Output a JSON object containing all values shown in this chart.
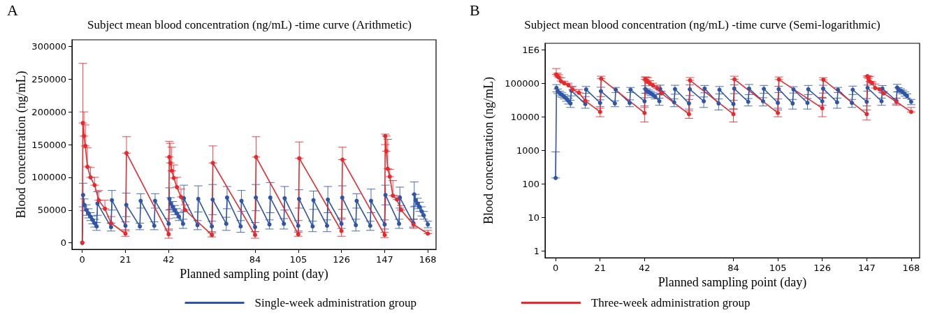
{
  "chart_data": [
    {
      "type": "line",
      "title": "Subject mean blood concentration (ng/mL) -time curve (Arithmetic)",
      "xlabel": "Planned sampling point (day)",
      "ylabel": "Blood concentration (ng/mL)",
      "annotations": [
        "A"
      ],
      "xlim": [
        -5,
        172
      ],
      "xticks": [
        0,
        21,
        42,
        84,
        105,
        126,
        147,
        168
      ],
      "ylim": [
        -10000,
        310000
      ],
      "yticks": [
        0,
        50000,
        100000,
        150000,
        200000,
        250000,
        300000
      ],
      "grid": false,
      "legend": "bottom",
      "marker": "circle",
      "line_style": "solid",
      "series": [
        {
          "name": "Single-week administration group",
          "color": "#2e55a8",
          "x": [
            0,
            0.4,
            1,
            2,
            3,
            4,
            5,
            6,
            7,
            7.4,
            14,
            14.4,
            21,
            21.4,
            28,
            28.4,
            35,
            35.4,
            42,
            42.4,
            43,
            44,
            45,
            46,
            47,
            49,
            49.4,
            56,
            56.4,
            63,
            63.4,
            70,
            70.4,
            77,
            77.4,
            84,
            84.4,
            91,
            91.4,
            98,
            98.4,
            105,
            105.4,
            112,
            112.4,
            119,
            119.4,
            126,
            126.4,
            133,
            133.4,
            140,
            140.4,
            147,
            147.4,
            154,
            154.4,
            161,
            161.4,
            162,
            163,
            164,
            165,
            166,
            168
          ],
          "values": [
            0,
            73000,
            58000,
            50000,
            45000,
            40000,
            35000,
            30000,
            25000,
            60000,
            24000,
            65000,
            26000,
            58000,
            25000,
            64000,
            26000,
            64000,
            29000,
            67000,
            60000,
            55000,
            50000,
            45000,
            40000,
            29000,
            68000,
            27000,
            67000,
            25000,
            66000,
            29000,
            69000,
            25000,
            64000,
            24000,
            69000,
            28000,
            69000,
            29000,
            68000,
            26000,
            67000,
            25000,
            65000,
            26000,
            66000,
            29000,
            69000,
            27000,
            64000,
            26000,
            64000,
            28000,
            73000,
            29000,
            69000,
            30000,
            74000,
            65000,
            60000,
            55000,
            48000,
            42000,
            28000
          ],
          "errors": [
            null,
            18000,
            9000,
            8000,
            7000,
            6000,
            6000,
            6000,
            6000,
            18000,
            6000,
            15000,
            6000,
            18000,
            5000,
            11000,
            6000,
            11000,
            8000,
            17000,
            9000,
            8000,
            7000,
            7000,
            6000,
            7000,
            20000,
            7000,
            20000,
            8000,
            23000,
            10000,
            17000,
            9000,
            16000,
            7000,
            20000,
            7000,
            23000,
            8000,
            18000,
            8000,
            14000,
            8000,
            14000,
            9000,
            20000,
            7000,
            18000,
            9000,
            11000,
            7000,
            18000,
            7000,
            15000,
            7000,
            16000,
            6000,
            19000,
            9000,
            8000,
            7000,
            7000,
            6000,
            5000
          ]
        },
        {
          "name": "Three-week administration group",
          "color": "#e8282b",
          "x": [
            0,
            0.3,
            0.8,
            1.5,
            2.5,
            4,
            6,
            8,
            11,
            14,
            21,
            21.5,
            42,
            42.3,
            42.8,
            43.5,
            44.5,
            46,
            48,
            50,
            63,
            63.5,
            84,
            84.5,
            105,
            105.5,
            126,
            126.5,
            147,
            147.3,
            147.8,
            148.5,
            149.5,
            151,
            153,
            155,
            161,
            168
          ],
          "values": [
            0,
            183000,
            163000,
            148000,
            116000,
            100000,
            88000,
            65000,
            52000,
            30000,
            14000,
            137000,
            13000,
            131000,
            122000,
            110000,
            99000,
            85000,
            70000,
            50000,
            12000,
            122000,
            12000,
            131000,
            13000,
            129000,
            18000,
            127000,
            12000,
            163000,
            140000,
            113000,
            101000,
            72000,
            66000,
            50000,
            28000,
            14000
          ],
          "errors": [
            null,
            [
              183000,
              274000
            ],
            [
              163000,
              200000
            ],
            [
              148000,
              180000
            ],
            [
              116000,
              145000
            ],
            [
              100000,
              115000
            ],
            [
              88000,
              100000
            ],
            [
              65000,
              80000
            ],
            [
              52000,
              65000
            ],
            [
              30000,
              40000
            ],
            4000,
            [
              137000,
              162000
            ],
            6000,
            [
              131000,
              155000
            ],
            [
              122000,
              152000
            ],
            [
              110000,
              146000
            ],
            [
              99000,
              119000
            ],
            [
              85000,
              100000
            ],
            [
              70000,
              82000
            ],
            [
              50000,
              58000
            ],
            3000,
            [
              122000,
              148000
            ],
            5000,
            [
              131000,
              162000
            ],
            3000,
            [
              129000,
              154000
            ],
            [
              10000,
              38000
            ],
            [
              127000,
              146000
            ],
            4000,
            [
              150000,
              166000
            ],
            [
              140000,
              163000
            ],
            [
              113000,
              158000
            ],
            [
              101000,
              112000
            ],
            [
              72000,
              95000
            ],
            [
              66000,
              72000
            ],
            [
              50000,
              57000
            ],
            [
              22000,
              36000
            ],
            [
              14000,
              19000
            ]
          ]
        }
      ]
    },
    {
      "type": "line",
      "title": "Subject mean blood concentration (ng/mL) -time curve (Semi-logarithmic)",
      "xlabel": "Planned sampling point (day)",
      "ylabel": "Blood concentration (ng/mL)",
      "annotations": [
        "B"
      ],
      "xlim": [
        -5,
        172
      ],
      "xticks": [
        0,
        21,
        42,
        84,
        105,
        126,
        147,
        168
      ],
      "ylim": [
        0.63,
        1550000
      ],
      "yticks": [
        1,
        10,
        100,
        1000,
        10000,
        100000,
        {
          "value": 1000000,
          "label": "1E6"
        }
      ],
      "log": "y",
      "grid": false,
      "marker": "circle",
      "line_style": "solid",
      "series": [
        {
          "color": "#2e55a8",
          "x": [
            0,
            0.4,
            1,
            2,
            3,
            4,
            5,
            6,
            7,
            7.4,
            14,
            14.4,
            21,
            21.4,
            28,
            28.4,
            35,
            35.4,
            42,
            42.4,
            43,
            44,
            45,
            46,
            47,
            49,
            49.4,
            56,
            56.4,
            63,
            63.4,
            70,
            70.4,
            77,
            77.4,
            84,
            84.4,
            91,
            91.4,
            98,
            98.4,
            105,
            105.4,
            112,
            112.4,
            119,
            119.4,
            126,
            126.4,
            133,
            133.4,
            140,
            140.4,
            147,
            147.4,
            154,
            154.4,
            161,
            161.4,
            162,
            163,
            164,
            165,
            166,
            168
          ],
          "values": [
            150,
            73000,
            58000,
            50000,
            45000,
            40000,
            35000,
            30000,
            25000,
            60000,
            24000,
            65000,
            26000,
            58000,
            25000,
            64000,
            26000,
            64000,
            29000,
            67000,
            60000,
            55000,
            50000,
            45000,
            40000,
            29000,
            68000,
            27000,
            67000,
            25000,
            66000,
            29000,
            69000,
            25000,
            64000,
            24000,
            69000,
            28000,
            69000,
            29000,
            68000,
            26000,
            67000,
            25000,
            65000,
            26000,
            66000,
            29000,
            69000,
            27000,
            64000,
            26000,
            64000,
            28000,
            73000,
            29000,
            69000,
            30000,
            74000,
            65000,
            60000,
            55000,
            48000,
            42000,
            28000
          ],
          "errors": [
            [
              150,
              900
            ],
            18000,
            9000,
            8000,
            7000,
            6000,
            6000,
            6000,
            6000,
            18000,
            6000,
            15000,
            6000,
            18000,
            5000,
            11000,
            6000,
            11000,
            8000,
            17000,
            9000,
            8000,
            7000,
            7000,
            6000,
            7000,
            20000,
            7000,
            20000,
            8000,
            23000,
            10000,
            17000,
            9000,
            16000,
            7000,
            20000,
            7000,
            23000,
            8000,
            18000,
            8000,
            14000,
            8000,
            14000,
            9000,
            20000,
            7000,
            18000,
            9000,
            11000,
            7000,
            18000,
            7000,
            15000,
            7000,
            16000,
            6000,
            19000,
            9000,
            8000,
            7000,
            7000,
            6000,
            5000
          ]
        },
        {
          "color": "#e8282b",
          "x": [
            0.3,
            0.8,
            1.5,
            2.5,
            4,
            6,
            8,
            11,
            14,
            21,
            21.5,
            42,
            42.3,
            42.8,
            43.5,
            44.5,
            46,
            48,
            50,
            63,
            63.5,
            84,
            84.5,
            105,
            105.5,
            126,
            126.5,
            147,
            147.3,
            147.8,
            148.5,
            149.5,
            151,
            153,
            155,
            161,
            168
          ],
          "values": [
            183000,
            163000,
            148000,
            116000,
            100000,
            88000,
            65000,
            52000,
            30000,
            14000,
            137000,
            13000,
            131000,
            122000,
            110000,
            99000,
            85000,
            70000,
            50000,
            12000,
            122000,
            12000,
            131000,
            13000,
            129000,
            18000,
            127000,
            12000,
            163000,
            140000,
            113000,
            101000,
            72000,
            66000,
            50000,
            28000,
            14000
          ],
          "errors": [
            [
              183000,
              274000
            ],
            [
              163000,
              200000
            ],
            [
              148000,
              180000
            ],
            [
              116000,
              145000
            ],
            [
              100000,
              115000
            ],
            [
              88000,
              100000
            ],
            [
              65000,
              80000
            ],
            [
              52000,
              65000
            ],
            [
              30000,
              40000
            ],
            4000,
            [
              137000,
              162000
            ],
            6000,
            [
              131000,
              155000
            ],
            [
              122000,
              152000
            ],
            [
              110000,
              146000
            ],
            [
              99000,
              119000
            ],
            [
              85000,
              100000
            ],
            [
              70000,
              82000
            ],
            [
              50000,
              58000
            ],
            3000,
            [
              122000,
              148000
            ],
            5000,
            [
              131000,
              162000
            ],
            3000,
            [
              129000,
              154000
            ],
            [
              10000,
              38000
            ],
            [
              127000,
              146000
            ],
            4000,
            [
              150000,
              166000
            ],
            [
              140000,
              163000
            ],
            [
              113000,
              158000
            ],
            [
              101000,
              112000
            ],
            [
              72000,
              95000
            ],
            [
              66000,
              72000
            ],
            [
              50000,
              57000
            ],
            [
              22000,
              36000
            ],
            [
              14000,
              19000
            ]
          ]
        }
      ]
    }
  ]
}
